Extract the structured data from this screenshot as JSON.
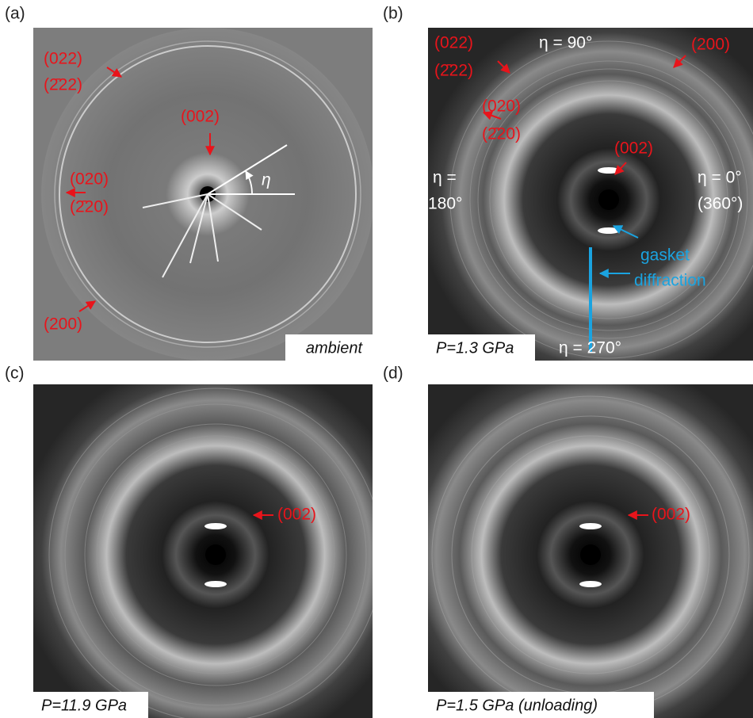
{
  "panels": [
    {
      "label": "(a)",
      "condition": "ambient",
      "annotations": [
        "(022)",
        "(2̄22)",
        "(002)",
        "(020)",
        "(2̄20)",
        "(200)",
        "η"
      ]
    },
    {
      "label": "(b)",
      "condition": "P=1.3 GPa",
      "annotations": [
        "(022)",
        "(2̄22)",
        "η = 90°",
        "(200)",
        "(020)",
        "(2̄20)",
        "(002)",
        "η =",
        "180°",
        "η = 0°",
        "(360°)",
        "gasket",
        "diffraction",
        "η = 270°"
      ]
    },
    {
      "label": "(c)",
      "condition": "P=11.9 GPa",
      "annotations": [
        "(002)"
      ]
    },
    {
      "label": "(d)",
      "condition": "P=1.5 GPa (unloading)",
      "annotations": [
        "(002)"
      ]
    }
  ]
}
